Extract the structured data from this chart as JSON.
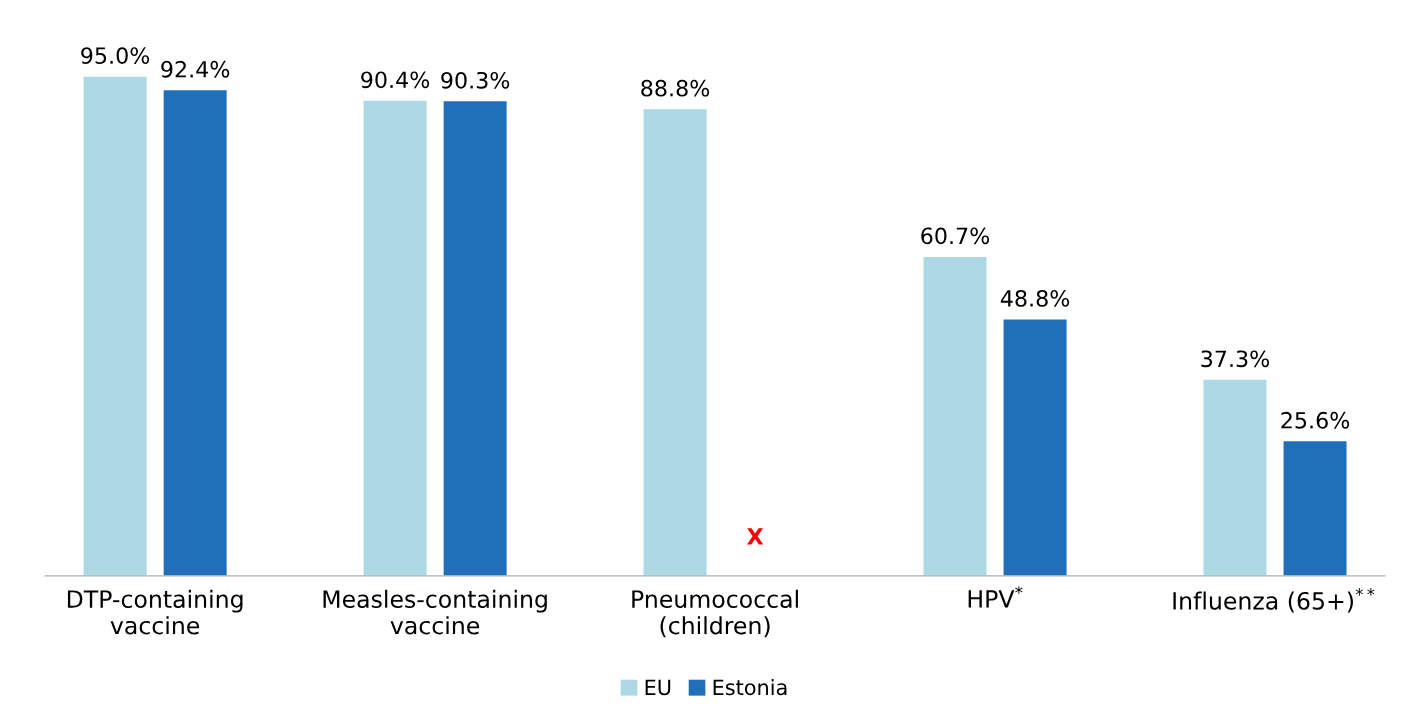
{
  "chart_data": {
    "type": "bar",
    "categories": [
      "DTP-containing\nvaccine",
      "Measles-containing\nvaccine",
      "Pneumococcal\n(children)",
      "HPV$^{*}$",
      "Influenza (65+)$^{**}$"
    ],
    "series": [
      {
        "name": "EU",
        "color": "#add8e6",
        "values": [
          95.0,
          90.4,
          88.8,
          60.7,
          37.3
        ],
        "value_labels": [
          "95.0%",
          "90.4%",
          "88.8%",
          "60.7%",
          "37.3%"
        ]
      },
      {
        "name": "Estonia",
        "color": "#1f70b8",
        "values": [
          92.4,
          90.3,
          null,
          48.8,
          25.6
        ],
        "value_labels": [
          "92.4%",
          "90.3%",
          null,
          "48.8%",
          "25.6%"
        ]
      }
    ],
    "annotations": [
      "X"
    ],
    "tick_labels": "x",
    "grid": false,
    "legend": "bottom"
  }
}
